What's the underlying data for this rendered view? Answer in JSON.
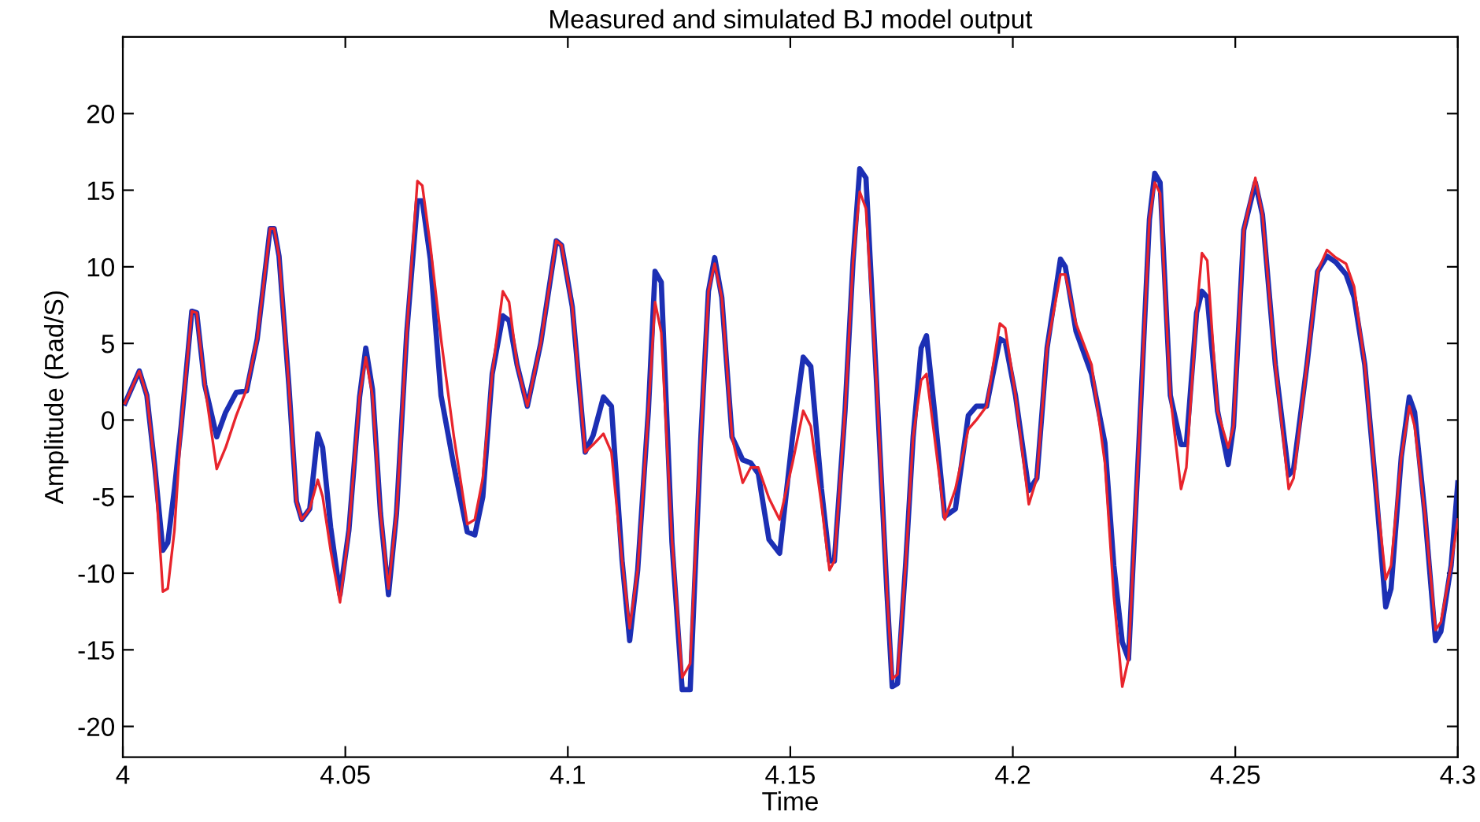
{
  "chart_data": {
    "type": "line",
    "title": "Measured and simulated BJ model output",
    "xlabel": "Time",
    "ylabel": "Amplitude (Rad/S)",
    "x": [
      4.0005,
      4.0037,
      4.0054,
      4.0072,
      4.009,
      4.0101,
      4.0116,
      4.0131,
      4.0155,
      4.0166,
      4.0184,
      4.0211,
      4.0231,
      4.0255,
      4.0278,
      4.0302,
      4.0331,
      4.034,
      4.0351,
      4.0373,
      4.039,
      4.0402,
      4.042,
      4.0438,
      4.0449,
      4.0467,
      4.0488,
      4.0508,
      4.0532,
      4.0546,
      4.0561,
      4.0579,
      4.0597,
      4.0615,
      4.0638,
      4.0662,
      4.0673,
      4.0691,
      4.0715,
      4.0744,
      4.0774,
      4.0791,
      4.0809,
      4.083,
      4.0854,
      4.0868,
      4.0886,
      4.0909,
      4.0939,
      4.0974,
      4.0986,
      4.101,
      4.1039,
      4.1057,
      4.108,
      4.1098,
      4.1122,
      4.1139,
      4.1157,
      4.1181,
      4.1196,
      4.121,
      4.1234,
      4.1257,
      4.1275,
      4.1299,
      4.1316,
      4.133,
      4.1346,
      4.1369,
      4.1393,
      4.1411,
      4.1428,
      4.1452,
      4.1476,
      4.1505,
      4.1529,
      4.1546,
      4.157,
      4.1588,
      4.1599,
      4.1623,
      4.1641,
      4.1656,
      4.167,
      4.1694,
      4.1717,
      4.1729,
      4.1741,
      4.1759,
      4.1776,
      4.1794,
      4.1806,
      4.1824,
      4.1847,
      4.1871,
      4.19,
      4.1918,
      4.1941,
      4.1971,
      4.1983,
      4.2006,
      4.2036,
      4.2054,
      4.2077,
      4.2107,
      4.2118,
      4.2142,
      4.2177,
      4.2207,
      4.2227,
      4.2246,
      4.226,
      4.2284,
      4.2307,
      4.2319,
      4.2331,
      4.2354,
      4.2378,
      4.239,
      4.2413,
      4.2425,
      4.2437,
      4.246,
      4.2484,
      4.2496,
      4.2519,
      4.2545,
      4.2561,
      4.259,
      4.262,
      4.2631,
      4.2661,
      4.2685,
      4.2706,
      4.2726,
      4.2749,
      4.2767,
      4.2791,
      4.2814,
      4.2838,
      4.285,
      4.2873,
      4.2891,
      4.2903,
      4.2926,
      4.295,
      4.2962,
      4.2985,
      4.3
    ],
    "series": [
      {
        "color": "#e8242c",
        "values": [
          1.1,
          3.2,
          1.6,
          -3.1,
          -11.2,
          -11,
          -7.2,
          -0.4,
          7.1,
          7,
          2.3,
          -3.2,
          -1.8,
          0.3,
          2,
          5.3,
          12.5,
          12.5,
          10.7,
          2.3,
          -5.3,
          -6.5,
          -5.8,
          -3.9,
          -5,
          -8.5,
          -11.9,
          -7.2,
          1.5,
          4.1,
          1.6,
          -6.1,
          -11,
          -6.1,
          5.7,
          15.6,
          15.3,
          11.4,
          5.3,
          -1.1,
          -6.8,
          -6.5,
          -3.8,
          3,
          8.4,
          7.7,
          3.6,
          0.9,
          5,
          11.7,
          11.4,
          7.4,
          -2.1,
          -1.6,
          -0.9,
          -2.1,
          -9.2,
          -13.6,
          -9.8,
          0.6,
          7.7,
          5.7,
          -7.8,
          -16.8,
          -15.9,
          -1.1,
          8.4,
          10.2,
          8,
          -1.1,
          -4.1,
          -3.1,
          -3.1,
          -5.1,
          -6.5,
          -2.8,
          0.6,
          -0.4,
          -5.5,
          -9.8,
          -9.2,
          0.6,
          10.4,
          14.9,
          13.8,
          2.3,
          -11.2,
          -16.9,
          -16.6,
          -9.5,
          -1.1,
          2.6,
          3,
          -1.1,
          -6.5,
          -4.5,
          -0.6,
          0,
          0.9,
          6.3,
          6,
          1.6,
          -5.5,
          -3.8,
          4.7,
          9.5,
          9.5,
          6.3,
          3.6,
          -2.8,
          -11.5,
          -17.4,
          -15.6,
          -1.1,
          13.1,
          15.5,
          14.8,
          1.6,
          -4.5,
          -3.1,
          7,
          10.9,
          10.4,
          0.6,
          -1.8,
          -0.4,
          12.4,
          15.8,
          13.4,
          3.6,
          -4.5,
          -3.8,
          3.6,
          9.7,
          11.1,
          10.6,
          10.2,
          8.7,
          3.6,
          -3.8,
          -10.4,
          -9.5,
          -2.4,
          0.9,
          -0.4,
          -6.1,
          -13.7,
          -13.2,
          -9.5,
          -6.5
        ]
      },
      {
        "color": "#1c2fb4",
        "values": [
          1.1,
          3.2,
          1.6,
          -3.1,
          -8.5,
          -8,
          -4.5,
          -0.4,
          7.1,
          7,
          2.3,
          -1.1,
          0.5,
          1.8,
          1.9,
          5.3,
          12.5,
          12.5,
          10.7,
          2.3,
          -5.3,
          -6.5,
          -5.8,
          -0.9,
          -1.8,
          -7,
          -11.4,
          -7.2,
          1.5,
          4.7,
          2,
          -6.1,
          -11.4,
          -6.1,
          5.7,
          14.3,
          14.3,
          10.5,
          1.6,
          -3,
          -7.3,
          -7.5,
          -5,
          3,
          6.8,
          6.5,
          3.6,
          0.9,
          5,
          11.7,
          11.4,
          7.4,
          -2.1,
          -1,
          1.5,
          0.9,
          -9.2,
          -14.4,
          -9.8,
          0.6,
          9.7,
          9,
          -8,
          -17.6,
          -17.6,
          -1.1,
          8.4,
          10.6,
          8,
          -1.1,
          -2.6,
          -2.8,
          -3.5,
          -7.8,
          -8.7,
          -1.1,
          4.1,
          3.5,
          -4.5,
          -9.2,
          -9.2,
          0.6,
          10.4,
          16.4,
          15.8,
          2.3,
          -11.2,
          -17.4,
          -17.2,
          -9.5,
          -1.1,
          4.7,
          5.5,
          0.6,
          -6.3,
          -5.8,
          0.3,
          0.9,
          0.9,
          5.3,
          5.1,
          1.6,
          -4.6,
          -3.8,
          4.7,
          10.5,
          10,
          5.8,
          3,
          -1.5,
          -9.5,
          -14.5,
          -15.6,
          -1.1,
          13.1,
          16.1,
          15.5,
          1.6,
          -1.6,
          -1.6,
          7,
          8.4,
          8,
          0.6,
          -2.9,
          -0.4,
          12.4,
          15.5,
          13.4,
          3.6,
          -3.6,
          -3.2,
          3.6,
          9.7,
          10.7,
          10.3,
          9.5,
          8,
          3.6,
          -3.8,
          -12.2,
          -11,
          -2.4,
          1.5,
          0.5,
          -6.1,
          -14.4,
          -13.8,
          -9.5,
          -4.1
        ]
      }
    ],
    "xlim": [
      4,
      4.3
    ],
    "xticks": [
      4,
      4.05,
      4.1,
      4.15,
      4.2,
      4.25,
      4.3
    ],
    "ylim": [
      -22,
      25
    ],
    "yticks": [
      -20,
      -15,
      -10,
      -5,
      0,
      5,
      10,
      15,
      20
    ],
    "grid": false,
    "legend": false
  }
}
